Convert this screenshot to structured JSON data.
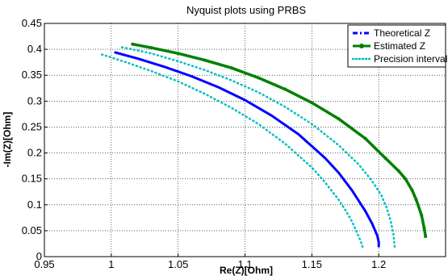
{
  "chart_data": {
    "type": "line",
    "title": "Nyquist plots using PRBS",
    "xlabel": "Re(Z)[Ohm]",
    "ylabel": "-Im(Z)[Ohm]",
    "xlim": [
      0.95,
      1.25
    ],
    "ylim": [
      0,
      0.45
    ],
    "xticks": [
      "0.95",
      "1",
      "1.05",
      "1.1",
      "1.15",
      "1.2"
    ],
    "yticks": [
      "0",
      "0.05",
      "0.1",
      "0.15",
      "0.2",
      "0.25",
      "0.3",
      "0.35",
      "0.4",
      "0.45"
    ],
    "grid": true,
    "legend_position": "top-right",
    "colors": {
      "theoretical": "#0000ff",
      "estimated": "#008000",
      "precision": "#00bfbf"
    },
    "series": [
      {
        "name": "Theoretical Z",
        "style": "dash-dot",
        "x": [
          1.003,
          1.02,
          1.04,
          1.06,
          1.08,
          1.1,
          1.12,
          1.14,
          1.16,
          1.17,
          1.18,
          1.19,
          1.195,
          1.199,
          1.2,
          1.2
        ],
        "y": [
          0.394,
          0.382,
          0.366,
          0.348,
          0.327,
          0.302,
          0.272,
          0.236,
          0.19,
          0.162,
          0.128,
          0.088,
          0.064,
          0.04,
          0.028,
          0.02
        ]
      },
      {
        "name": "Estimated Z",
        "style": "line-marker",
        "x": [
          1.016,
          1.03,
          1.05,
          1.07,
          1.09,
          1.11,
          1.13,
          1.15,
          1.17,
          1.19,
          1.205,
          1.215,
          1.22,
          1.225,
          1.228,
          1.232,
          1.234,
          1.235
        ],
        "y": [
          0.41,
          0.403,
          0.392,
          0.379,
          0.364,
          0.345,
          0.323,
          0.297,
          0.266,
          0.228,
          0.19,
          0.165,
          0.15,
          0.128,
          0.11,
          0.08,
          0.055,
          0.039
        ]
      },
      {
        "name": "Precision interval",
        "style": "dotted",
        "x": [
          0.993,
          1.01,
          1.03,
          1.05,
          1.07,
          1.09,
          1.11,
          1.13,
          1.15,
          1.16,
          1.17,
          1.175,
          1.18,
          1.184,
          1.187,
          1.188
        ],
        "y": [
          0.39,
          0.376,
          0.358,
          0.338,
          0.314,
          0.287,
          0.256,
          0.218,
          0.172,
          0.143,
          0.11,
          0.09,
          0.068,
          0.045,
          0.027,
          0.018
        ]
      },
      {
        "name": "",
        "style": "dotted",
        "x": [
          1.008,
          1.03,
          1.05,
          1.07,
          1.09,
          1.11,
          1.13,
          1.15,
          1.17,
          1.185,
          1.195,
          1.202,
          1.206,
          1.209,
          1.211,
          1.212
        ],
        "y": [
          0.404,
          0.392,
          0.377,
          0.36,
          0.34,
          0.317,
          0.289,
          0.256,
          0.215,
          0.178,
          0.146,
          0.118,
          0.094,
          0.068,
          0.044,
          0.018
        ]
      }
    ]
  }
}
